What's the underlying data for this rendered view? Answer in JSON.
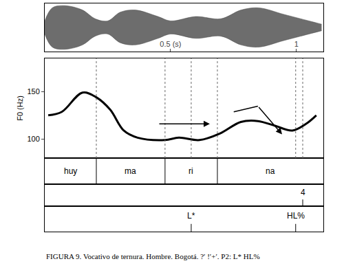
{
  "chart_data": {
    "type": "line",
    "caption": "FIGURA 9. Vocativo de ternura. Hombre. Bogotá. ?′ !′+′. P2: L* HL%",
    "y_label": "F0 (Hz)",
    "xlim": [
      0,
      1.107
    ],
    "xticks": [
      {
        "value": 0.5,
        "label": "0.5 (s)"
      },
      1
    ],
    "ylim": [
      80,
      185
    ],
    "yticks": [
      100,
      150
    ],
    "color": "#000000",
    "x": [
      0.014,
      0.068,
      0.15,
      0.205,
      0.26,
      0.314,
      0.369,
      0.478,
      0.533,
      0.615,
      0.697,
      0.779,
      0.847,
      0.915,
      0.984,
      1.038,
      1.079
    ],
    "values": [
      125,
      128.7,
      149,
      144,
      131,
      109,
      101.5,
      99,
      101.5,
      99,
      106,
      118,
      119,
      114,
      109,
      116,
      125
    ],
    "waveform": {
      "x": [
        0,
        0.03,
        0.08,
        0.15,
        0.2,
        0.25,
        0.3,
        0.36,
        0.45,
        0.5,
        0.6,
        0.7,
        0.78,
        0.85,
        0.95,
        1.05,
        1.1
      ],
      "amplitude": [
        0.3,
        0.9,
        1.0,
        0.8,
        0.4,
        0.3,
        0.7,
        0.8,
        0.5,
        0.3,
        0.5,
        0.4,
        0.8,
        0.9,
        0.6,
        0.3,
        0.15
      ]
    },
    "arrows": [
      {
        "x": [
          0.451,
          0.656
        ],
        "y": [
          116,
          116
        ]
      },
      {
        "x": [
          0.751,
          0.847,
          0.943
        ],
        "y": [
          128.7,
          134.6,
          105
        ]
      }
    ],
    "tiers": [
      {
        "intervals": [
          {
            "start": 0,
            "end": 0.205,
            "label": "huy"
          },
          {
            "start": 0.205,
            "end": 0.478,
            "label": "ma"
          },
          {
            "start": 0.478,
            "end": 0.686,
            "label": "ri"
          },
          {
            "start": 0.686,
            "end": 1.107,
            "label": "na"
          }
        ]
      },
      {
        "points": [
          {
            "time": 1.025,
            "label": "4"
          }
        ]
      },
      {
        "points": [
          {
            "time": 0.582,
            "label": "L*"
          },
          {
            "time": 0.997,
            "label": "HL%"
          }
        ]
      }
    ]
  }
}
